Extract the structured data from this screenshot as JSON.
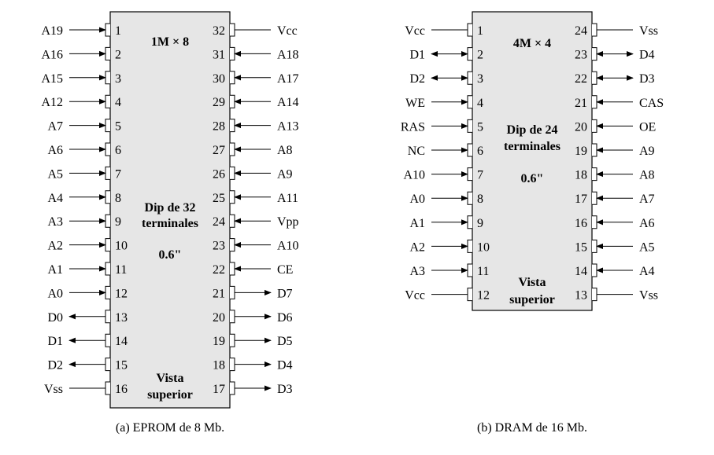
{
  "eprom": {
    "title": "1M × 8",
    "package": [
      "Dip de 32",
      "terminales"
    ],
    "width": "0.6\"",
    "view": [
      "Vista",
      "superior"
    ],
    "caption": "(a) EPROM de 8 Mb.",
    "left_pins": [
      {
        "num": "1",
        "label": "A19",
        "dir": "in"
      },
      {
        "num": "2",
        "label": "A16",
        "dir": "in"
      },
      {
        "num": "3",
        "label": "A15",
        "dir": "in"
      },
      {
        "num": "4",
        "label": "A12",
        "dir": "in"
      },
      {
        "num": "5",
        "label": "A7",
        "dir": "in"
      },
      {
        "num": "6",
        "label": "A6",
        "dir": "in"
      },
      {
        "num": "7",
        "label": "A5",
        "dir": "in"
      },
      {
        "num": "8",
        "label": "A4",
        "dir": "in"
      },
      {
        "num": "9",
        "label": "A3",
        "dir": "in"
      },
      {
        "num": "10",
        "label": "A2",
        "dir": "in"
      },
      {
        "num": "11",
        "label": "A1",
        "dir": "in"
      },
      {
        "num": "12",
        "label": "A0",
        "dir": "in"
      },
      {
        "num": "13",
        "label": "D0",
        "dir": "out"
      },
      {
        "num": "14",
        "label": "D1",
        "dir": "out"
      },
      {
        "num": "15",
        "label": "D2",
        "dir": "out"
      },
      {
        "num": "16",
        "label": "Vss",
        "dir": "none"
      }
    ],
    "right_pins": [
      {
        "num": "32",
        "label": "Vcc",
        "dir": "none"
      },
      {
        "num": "31",
        "label": "A18",
        "dir": "in"
      },
      {
        "num": "30",
        "label": "A17",
        "dir": "in"
      },
      {
        "num": "29",
        "label": "A14",
        "dir": "in"
      },
      {
        "num": "28",
        "label": "A13",
        "dir": "in"
      },
      {
        "num": "27",
        "label": "A8",
        "dir": "in"
      },
      {
        "num": "26",
        "label": "A9",
        "dir": "in"
      },
      {
        "num": "25",
        "label": "A11",
        "dir": "in"
      },
      {
        "num": "24",
        "label": "Vpp",
        "dir": "in"
      },
      {
        "num": "23",
        "label": "A10",
        "dir": "in"
      },
      {
        "num": "22",
        "label": "CE",
        "dir": "in"
      },
      {
        "num": "21",
        "label": "D7",
        "dir": "out"
      },
      {
        "num": "20",
        "label": "D6",
        "dir": "out"
      },
      {
        "num": "19",
        "label": "D5",
        "dir": "out"
      },
      {
        "num": "18",
        "label": "D4",
        "dir": "out"
      },
      {
        "num": "17",
        "label": "D3",
        "dir": "out"
      }
    ]
  },
  "dram": {
    "title": "4M × 4",
    "package": [
      "Dip de 24",
      "terminales"
    ],
    "width": "0.6\"",
    "view": [
      "Vista",
      "superior"
    ],
    "caption": "(b) DRAM de 16 Mb.",
    "left_pins": [
      {
        "num": "1",
        "label": "Vcc",
        "dir": "none"
      },
      {
        "num": "2",
        "label": "D1",
        "dir": "bi"
      },
      {
        "num": "3",
        "label": "D2",
        "dir": "bi"
      },
      {
        "num": "4",
        "label": "WE",
        "dir": "in"
      },
      {
        "num": "5",
        "label": "RAS",
        "dir": "in"
      },
      {
        "num": "6",
        "label": "NC",
        "dir": "in"
      },
      {
        "num": "7",
        "label": "A10",
        "dir": "in"
      },
      {
        "num": "8",
        "label": "A0",
        "dir": "in"
      },
      {
        "num": "9",
        "label": "A1",
        "dir": "in"
      },
      {
        "num": "10",
        "label": "A2",
        "dir": "in"
      },
      {
        "num": "11",
        "label": "A3",
        "dir": "in"
      },
      {
        "num": "12",
        "label": "Vcc",
        "dir": "none"
      }
    ],
    "right_pins": [
      {
        "num": "24",
        "label": "Vss",
        "dir": "none"
      },
      {
        "num": "23",
        "label": "D4",
        "dir": "bi"
      },
      {
        "num": "22",
        "label": "D3",
        "dir": "bi"
      },
      {
        "num": "21",
        "label": "CAS",
        "dir": "in"
      },
      {
        "num": "20",
        "label": "OE",
        "dir": "in"
      },
      {
        "num": "19",
        "label": "A9",
        "dir": "in"
      },
      {
        "num": "18",
        "label": "A8",
        "dir": "in"
      },
      {
        "num": "17",
        "label": "A7",
        "dir": "in"
      },
      {
        "num": "16",
        "label": "A6",
        "dir": "in"
      },
      {
        "num": "15",
        "label": "A5",
        "dir": "in"
      },
      {
        "num": "14",
        "label": "A4",
        "dir": "in"
      },
      {
        "num": "13",
        "label": "Vss",
        "dir": "none"
      }
    ]
  }
}
